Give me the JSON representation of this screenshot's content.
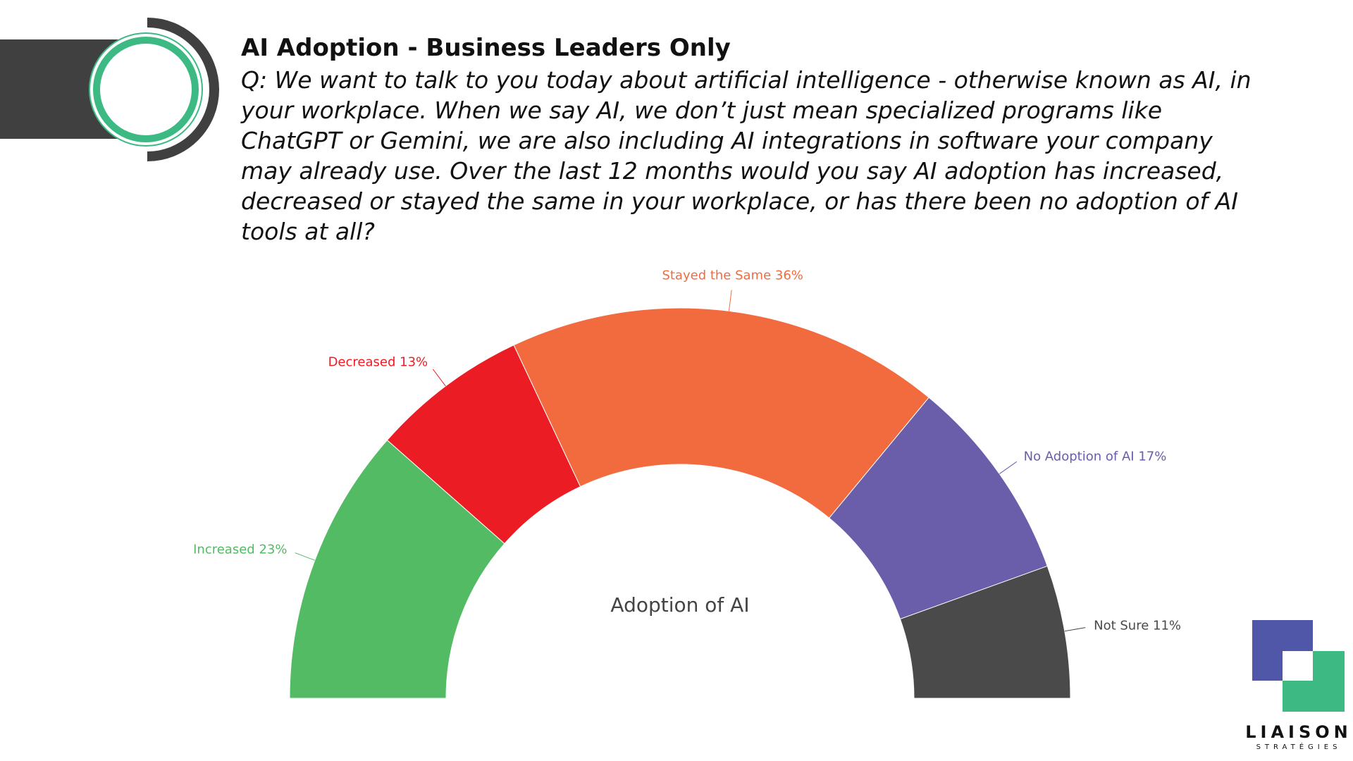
{
  "header": {
    "title": "AI Adoption - Business Leaders Only",
    "question": "Q: We want to talk to you today about artificial intelligence - otherwise known as AI, in your workplace. When we say AI, we don’t just mean specialized programs like ChatGPT or Gemini, we are also including AI integrations in software your company may already use. Over the last 12 months would you say AI adoption has increased, decreased or stayed the same in your workplace, or has there been no adoption of AI tools at all?"
  },
  "chart_data": {
    "type": "half-donut",
    "center_label": "Adoption of AI",
    "categories": [
      "Increased",
      "Decreased",
      "Stayed the Same",
      "No Adoption of AI",
      "Not Sure"
    ],
    "values": [
      23,
      13,
      36,
      17,
      11
    ],
    "value_labels": [
      "23%",
      "13%",
      "36%",
      "17%",
      "11%"
    ],
    "colors": [
      "#52bb64",
      "#ec1c24",
      "#f26b3f",
      "#6a5daa",
      "#4a4a4a"
    ]
  },
  "logo": {
    "name": "LIAISON",
    "tagline": "STRATÉGIES"
  }
}
